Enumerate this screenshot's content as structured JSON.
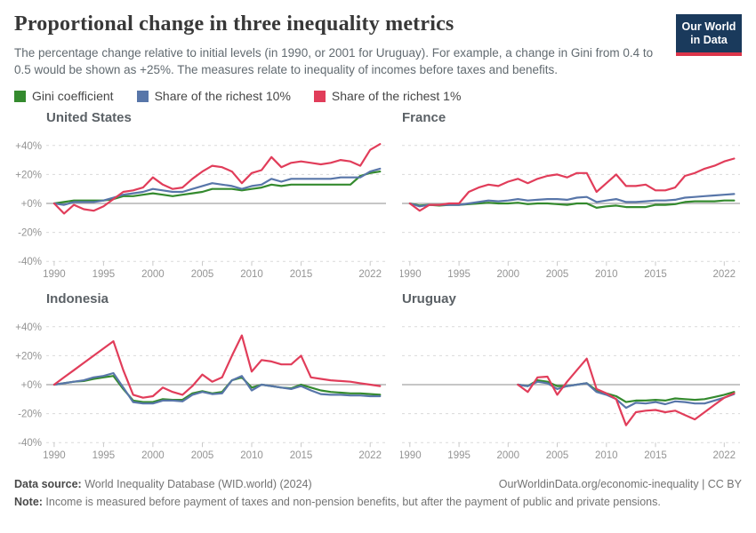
{
  "header": {
    "title": "Proportional change in three inequality metrics",
    "subtitle": "The percentage change relative to initial levels (in 1990, or 2001 for Uruguay). For example, a change in Gini from 0.4 to 0.5 would be shown as +25%. The measures relate to inequality of incomes before taxes and benefits.",
    "logo_line1": "Our World",
    "logo_line2": "in Data",
    "logo_bg": "#1a3a5c",
    "logo_bar": "#dc354a"
  },
  "legend": [
    {
      "label": "Gini coefficient",
      "color": "#348a2e"
    },
    {
      "label": "Share of the richest 10%",
      "color": "#5876a9"
    },
    {
      "label": "Share of the richest 1%",
      "color": "#e13d5a"
    }
  ],
  "chart_data": {
    "type": "line",
    "title": "Proportional change in three inequality metrics",
    "ylabel": "",
    "ylim": [
      -46,
      46
    ],
    "grid": "horizontal dashed at ±20% and ±40%, solid gray zero line",
    "legend_position": "top",
    "yticks": [
      {
        "label": "+40%",
        "value": 40
      },
      {
        "label": "+20%",
        "value": 20
      },
      {
        "label": "+0%",
        "value": 0
      },
      {
        "label": "-20%",
        "value": -20
      },
      {
        "label": "-40%",
        "value": -40
      }
    ],
    "xticks": [
      1990,
      1995,
      2000,
      2005,
      2010,
      2015,
      2022
    ],
    "series": [
      {
        "key": "gini",
        "name": "Gini coefficient",
        "color": "#348a2e"
      },
      {
        "key": "top10",
        "name": "Share of the richest 10%",
        "color": "#5876a9"
      },
      {
        "key": "top1",
        "name": "Share of the richest 1%",
        "color": "#e13d5a"
      }
    ],
    "charts": [
      {
        "name": "United States",
        "start_year": 1990,
        "values": {
          "gini": [
            0,
            1,
            2,
            2,
            2,
            2,
            3,
            5,
            5,
            6,
            7,
            6,
            5,
            6,
            7,
            8,
            10,
            10,
            10,
            9,
            10,
            11,
            13,
            12,
            13,
            13,
            13,
            13,
            13,
            13,
            13,
            19,
            21,
            22
          ],
          "top10": [
            0,
            -1,
            1,
            1,
            1,
            2,
            4,
            6,
            7,
            8,
            10,
            9,
            8,
            8,
            10,
            12,
            14,
            13,
            12,
            10,
            12,
            13,
            17,
            15,
            17,
            17,
            17,
            17,
            17,
            18,
            18,
            18,
            22,
            24
          ],
          "top1": [
            0,
            -7,
            -1,
            -4,
            -5,
            -2,
            3,
            8,
            9,
            11,
            18,
            13,
            10,
            11,
            17,
            22,
            26,
            25,
            22,
            14,
            21,
            23,
            32,
            25,
            28,
            29,
            28,
            27,
            28,
            30,
            29,
            26,
            37,
            41
          ]
        }
      },
      {
        "name": "France",
        "start_year": 1990,
        "values": {
          "gini": [
            0,
            -1.5,
            -1,
            -1.5,
            -1,
            -1,
            -0.5,
            0,
            0.5,
            0,
            0,
            0.5,
            -0.5,
            0,
            0,
            -0.5,
            -1,
            0,
            0,
            -3,
            -2,
            -1.5,
            -2.5,
            -2.5,
            -2.5,
            -1,
            -1,
            -0.5,
            1,
            1.5,
            1.5,
            1.5,
            2,
            2
          ],
          "top10": [
            0,
            -2,
            -1,
            -1,
            -1,
            -1,
            0,
            1,
            2,
            1.5,
            2,
            3,
            2,
            2.5,
            3,
            3,
            2.5,
            4,
            4.5,
            1,
            2,
            3,
            1,
            1,
            1.5,
            2,
            2,
            2.5,
            4,
            4.5,
            5,
            5.5,
            6,
            6.5
          ],
          "top1": [
            0,
            -5,
            -1,
            -1,
            0,
            0,
            8,
            11,
            13,
            12,
            15,
            17,
            14,
            17,
            19,
            20,
            18,
            21,
            21,
            8,
            14,
            20,
            12,
            12,
            13,
            9,
            9,
            11,
            19,
            21,
            24,
            26,
            29,
            31
          ]
        }
      },
      {
        "name": "Indonesia",
        "start_year": 1990,
        "values": {
          "gini": [
            0,
            1,
            2,
            2.5,
            4,
            5,
            6,
            -3,
            -11,
            -12,
            -12,
            -10,
            -10.5,
            -10.5,
            -6,
            -4.5,
            -6,
            -5,
            3,
            5,
            -2,
            0,
            -1,
            -2,
            -2.5,
            0,
            -2,
            -4,
            -5,
            -5.5,
            -6,
            -6,
            -6.5,
            -7
          ],
          "top10": [
            0,
            1,
            2,
            3,
            5,
            6,
            8,
            -2,
            -12,
            -13,
            -13,
            -11,
            -11,
            -11.5,
            -7,
            -5,
            -6.5,
            -6,
            3,
            6,
            -4,
            0,
            -1,
            -2,
            -3,
            -1,
            -4,
            -6.5,
            -7,
            -7,
            -7.5,
            -7.5,
            -8,
            -8
          ],
          "top1": [
            0,
            5,
            10,
            15,
            20,
            25,
            30,
            10,
            -7,
            -9,
            -8,
            -2,
            -5,
            -7,
            -1,
            7,
            2,
            5,
            20,
            34,
            9,
            17,
            16,
            14,
            14,
            20,
            5,
            4,
            3,
            2.5,
            2,
            1,
            0,
            -1
          ]
        }
      },
      {
        "name": "Uruguay",
        "start_year": 2001,
        "values": {
          "gini": [
            0,
            -1,
            3,
            2,
            -1,
            -1,
            0,
            1,
            -4,
            -6,
            -8,
            -12,
            -11,
            -11,
            -10.5,
            -11,
            -9.5,
            -10,
            -10.5,
            -10,
            -8.5,
            -7,
            -5
          ],
          "top10": [
            0,
            -1,
            2,
            1,
            -3,
            -1,
            0,
            1,
            -5,
            -7,
            -10,
            -16,
            -12.5,
            -13,
            -12,
            -13.5,
            -11.5,
            -12,
            -13,
            -13,
            -11,
            -9,
            -6.5
          ],
          "top1": [
            0,
            -5,
            5,
            5.5,
            -7,
            2,
            10,
            18,
            -3,
            -6,
            -10,
            -28,
            -19,
            -18,
            -17.5,
            -19,
            -18,
            -21,
            -24,
            -19,
            -14,
            -9,
            -6
          ]
        }
      }
    ]
  },
  "footer": {
    "data_source_label": "Data source:",
    "data_source_value": " World Inequality Database (WID.world) (2024)",
    "link": "OurWorldinData.org/economic-inequality | CC BY",
    "note_label": "Note:",
    "note_value": " Income is measured before payment of taxes and non-pension benefits, but after the payment of public and private pensions."
  }
}
